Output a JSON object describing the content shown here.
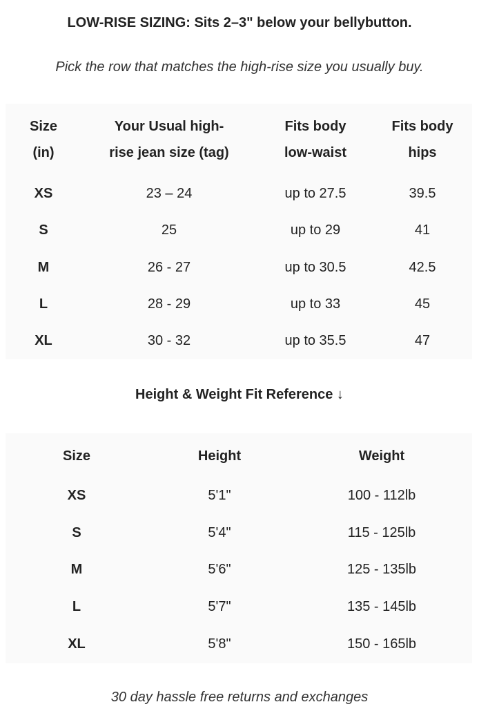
{
  "title": "LOW-RISE SIZING: Sits 2–3\" below your bellybutton.",
  "subtitle": "Pick the row that matches the high-rise size you usually buy.",
  "size_table": {
    "headers": [
      [
        "Size",
        "(in)"
      ],
      [
        "Your Usual high-",
        "rise jean size (tag)"
      ],
      [
        "Fits body",
        "low-waist"
      ],
      [
        "Fits body",
        "hips"
      ]
    ],
    "rows": [
      [
        "XS",
        "23 – 24",
        "up to 27.5",
        "39.5"
      ],
      [
        "S",
        "25",
        "up to 29",
        "41"
      ],
      [
        "M",
        "26 - 27",
        "up to 30.5",
        "42.5"
      ],
      [
        "L",
        "28 - 29",
        "up to 33",
        "45"
      ],
      [
        "XL",
        "30 - 32",
        "up to 35.5",
        "47"
      ]
    ]
  },
  "reference_heading": "Height & Weight Fit Reference ↓",
  "reference_table": {
    "headers": [
      "Size",
      "Height",
      "Weight"
    ],
    "rows": [
      [
        "XS",
        "5'1\"",
        "100 - 112lb"
      ],
      [
        "S",
        "5'4\"",
        "115 - 125lb"
      ],
      [
        "M",
        "5'6\"",
        "125 - 135lb"
      ],
      [
        "L",
        "5'7\"",
        "135 - 145lb"
      ],
      [
        "XL",
        "5'8\"",
        "150 - 165lb"
      ]
    ]
  },
  "footer": "30 day hassle free returns and exchanges"
}
